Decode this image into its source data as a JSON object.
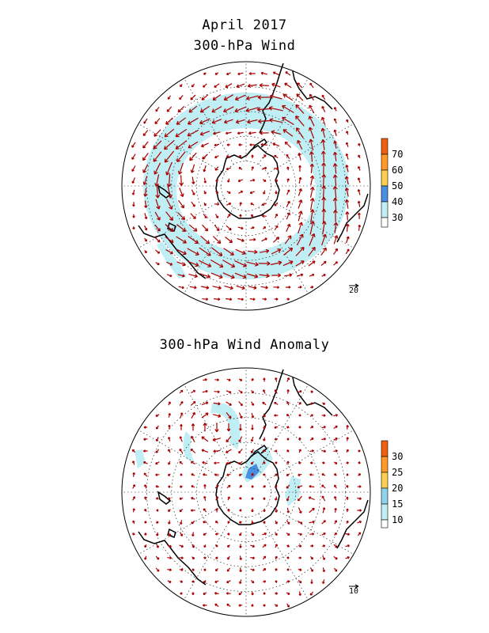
{
  "header": {
    "date": "April 2017",
    "top_title": "300-hPa Wind"
  },
  "bottom_title": "300-hPa Wind Anomaly",
  "top_map": {
    "colorbar": {
      "labels": [
        "30",
        "40",
        "50",
        "60",
        "70"
      ],
      "colors": [
        "#ffffff",
        "#bfeff5",
        "#4a8fe0",
        "#ffd050",
        "#ff9a2a",
        "#f06010"
      ]
    },
    "reference_vector": "20"
  },
  "bottom_map": {
    "colorbar": {
      "labels": [
        "10",
        "15",
        "20",
        "25",
        "30"
      ],
      "colors": [
        "#ffffff",
        "#bfeff5",
        "#8fd4ee",
        "#ffd050",
        "#ff9a2a",
        "#f06010"
      ]
    },
    "reference_vector": "10"
  },
  "colors": {
    "vector": "#aa0000",
    "coast": "#000000",
    "grid": "#000000",
    "shade_light": "#bfeff5",
    "shade_mid": "#4a8fe0"
  }
}
